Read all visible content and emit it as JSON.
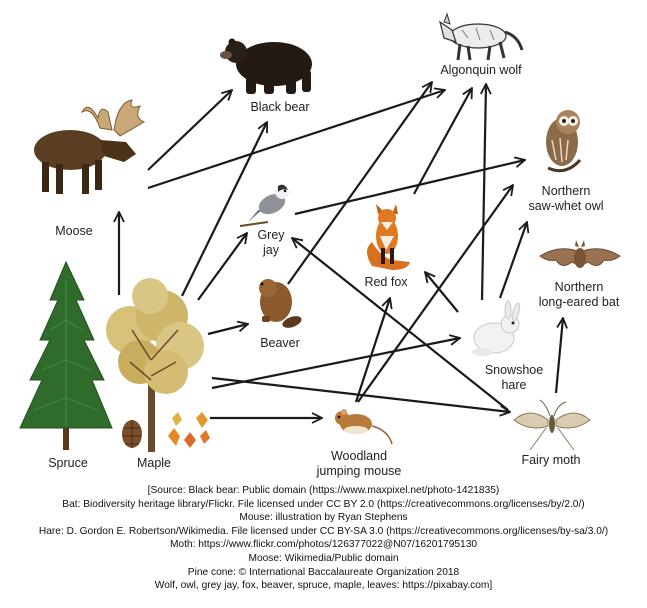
{
  "organisms": {
    "algonquin_wolf": "Algonquin wolf",
    "black_bear": "Black bear",
    "moose": "Moose",
    "owl_line1": "Northern",
    "owl_line2": "saw-whet owl",
    "grey_jay_line1": "Grey",
    "grey_jay_line2": "jay",
    "red_fox": "Red fox",
    "bat_line1": "Northern",
    "bat_line2": "long-eared bat",
    "beaver": "Beaver",
    "hare_line1": "Snowshoe",
    "hare_line2": "hare",
    "spruce": "Spruce",
    "maple": "Maple",
    "mouse_line1": "Woodland",
    "mouse_line2": "jumping mouse",
    "fairy_moth": "Fairy moth"
  },
  "credits": [
    "[Source: Black bear: Public domain (https://www.maxpixel.net/photo-1421835)",
    "Bat: Biodiversity heritage library/Flickr. File licensed under CC BY 2.0 (https://creativecommons.org/licenses/by/2.0/)",
    "Mouse: illustration by Ryan Stephens",
    "Hare: D. Gordon E. Robertson/Wikimedia. File licensed under CC BY-SA 3.0 (https://creativecommons.org/licenses/by-sa/3.0/)",
    "Moth: https://www.flickr.com/photos/126377022@N07/16201795130",
    "Moose: Wikimedia/Public domain",
    "Pine cone: © International Baccalaureate Organization 2018",
    "Wolf, owl, grey jay, fox, beaver, spruce, maple, leaves: https://pixabay.com]"
  ]
}
